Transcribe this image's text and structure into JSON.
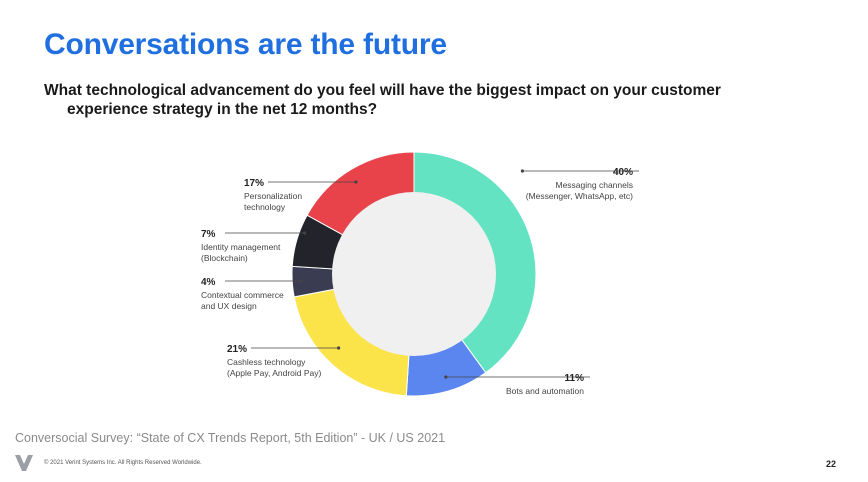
{
  "title": "Conversations are the future",
  "subtitle_line1": "What technological advancement do you feel will have the biggest impact on your customer",
  "subtitle_line2": "experience strategy in the net 12 months?",
  "source": "Conversocial Survey: “State of CX Trends  Report, 5th Edition” -  UK / US 2021",
  "copyright": "© 2021 Verint Systems Inc. All Rights Reserved Worldwide.",
  "page_number": "22",
  "colors": {
    "title": "#1f6fe0",
    "leader_line": "#444444",
    "center": "#f0f0f0"
  },
  "chart_data": {
    "type": "pie",
    "donut": true,
    "title": "",
    "slices": [
      {
        "label": "Messaging channels (Messenger, WhatsApp, etc)",
        "label_lines": [
          "Messaging channels",
          "(Messenger, WhatsApp, etc)"
        ],
        "value": 40,
        "pct_label": "40%",
        "color": "#63e3c2",
        "label_side": "right"
      },
      {
        "label": "Bots and automation",
        "label_lines": [
          "Bots and automation"
        ],
        "value": 11,
        "pct_label": "11%",
        "color": "#5b86f0",
        "label_side": "right"
      },
      {
        "label": "Cashless technology (Apple Pay, Android Pay)",
        "label_lines": [
          "Cashless technology",
          "(Apple Pay, Android Pay)"
        ],
        "value": 21,
        "pct_label": "21%",
        "color": "#fbe34a",
        "label_side": "left"
      },
      {
        "label": "Contextual commerce and UX design",
        "label_lines": [
          "Contextual commerce",
          "and UX design"
        ],
        "value": 4,
        "pct_label": "4%",
        "color": "#3a3d52",
        "label_side": "left"
      },
      {
        "label": "Identity management (Blockchain)",
        "label_lines": [
          "Identity management",
          "(Blockchain)"
        ],
        "value": 7,
        "pct_label": "7%",
        "color": "#23232b",
        "label_side": "left"
      },
      {
        "label": "Personalization technology",
        "label_lines": [
          "Personalization",
          "technology"
        ],
        "value": 17,
        "pct_label": "17%",
        "color": "#e8434a",
        "label_side": "left"
      }
    ]
  }
}
